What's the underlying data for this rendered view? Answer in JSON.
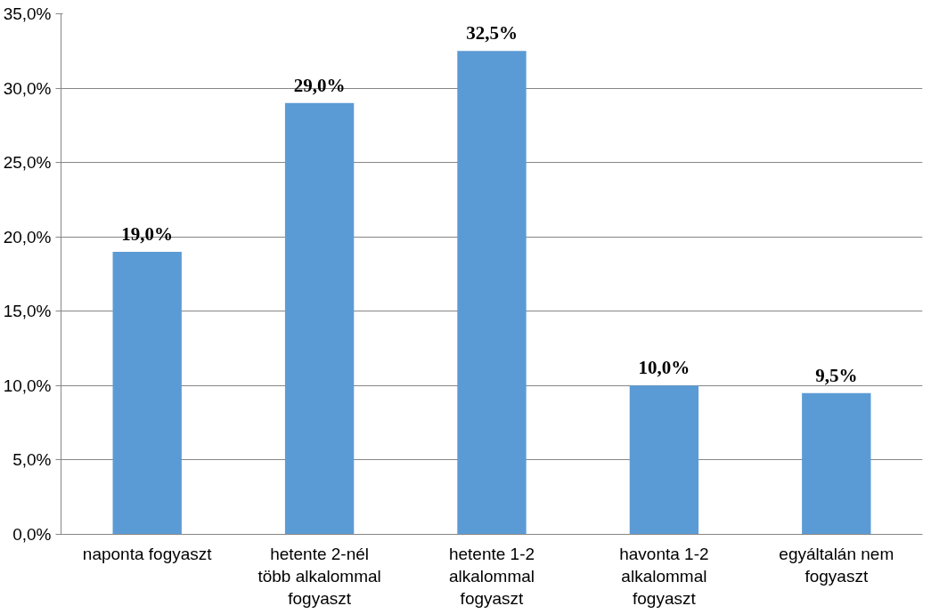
{
  "chart_data": {
    "type": "bar",
    "categories": [
      "naponta fogyaszt",
      "hetente 2-nél\ntöbb alkalommal\nfogyaszt",
      "hetente 1-2\nalkalommal\nfogyaszt",
      "havonta 1-2\nalkalommal\nfogyaszt",
      "egyáltalán nem\nfogyaszt"
    ],
    "values": [
      19.0,
      29.0,
      32.5,
      10.0,
      9.5
    ],
    "value_labels": [
      "19,0%",
      "29,0%",
      "32,5%",
      "10,0%",
      "9,5%"
    ],
    "color": "#5b9bd5",
    "ylim": [
      0,
      35
    ],
    "yticks": [
      {
        "value": 0,
        "label": "0,0%"
      },
      {
        "value": 5,
        "label": "5,0%"
      },
      {
        "value": 10,
        "label": "10,0%"
      },
      {
        "value": 15,
        "label": "15,0%"
      },
      {
        "value": 20,
        "label": "20,0%"
      },
      {
        "value": 25,
        "label": "25,0%"
      },
      {
        "value": 30,
        "label": "30,0%"
      },
      {
        "value": 35,
        "label": "35,0%"
      }
    ],
    "grid": "y"
  }
}
